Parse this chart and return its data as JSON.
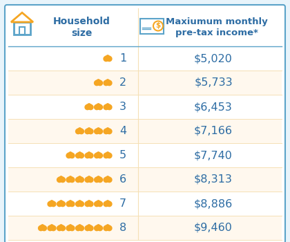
{
  "title_col1": "Household\nsize",
  "title_col2": "Maxiumum monthly\npre-tax income*",
  "rows": [
    {
      "size": 1,
      "income": "$5,020",
      "people": 1
    },
    {
      "size": 2,
      "income": "$5,733",
      "people": 2
    },
    {
      "size": 3,
      "income": "$6,453",
      "people": 3
    },
    {
      "size": 4,
      "income": "$7,166",
      "people": 4
    },
    {
      "size": 5,
      "income": "$7,740",
      "people": 5
    },
    {
      "size": 6,
      "income": "$8,313",
      "people": 6
    },
    {
      "size": 7,
      "income": "$8,886",
      "people": 7
    },
    {
      "size": 8,
      "income": "$9,460",
      "people": 8
    }
  ],
  "header_text_color": "#2e6da4",
  "row_colors": [
    "#ffffff",
    "#fff8ee"
  ],
  "row_text_color": "#2e6da4",
  "income_text_color": "#2e6da4",
  "border_color": "#5ba3c9",
  "people_icon_color": "#f5a623",
  "divider_color": "#f5e0b5",
  "house_body_color": "#5ba3c9",
  "house_roof_color": "#f5a623",
  "check_color": "#5ba3c9",
  "dollar_color": "#f5a623",
  "fig_bg": "#e8f4fb"
}
